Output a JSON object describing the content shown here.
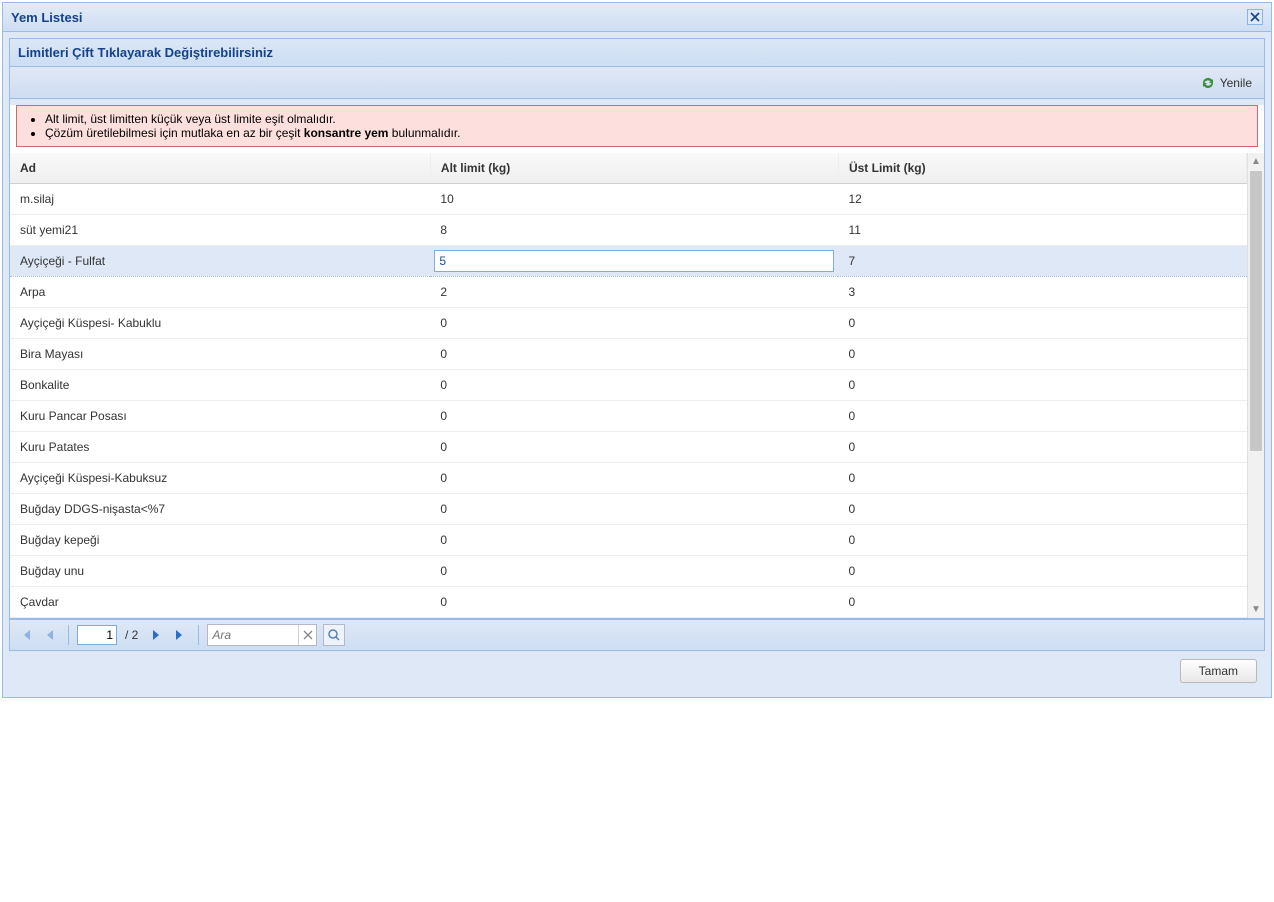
{
  "window": {
    "title": "Yem Listesi"
  },
  "panel": {
    "title": "Limitleri Çift Tıklayarak Değiştirebilirsiniz"
  },
  "toolbar": {
    "refresh_label": "Yenile"
  },
  "warnings": {
    "line1_text": "Alt limit, üst limitten küçük veya üst limite eşit olmalıdır.",
    "line2_prefix": "Çözüm üretilebilmesi için mutlaka en az bir çeşit ",
    "line2_bold": "konsantre yem",
    "line2_suffix": " bulunmalıdır."
  },
  "columns": {
    "name": "Ad",
    "lower": "Alt limit (kg)",
    "upper": "Üst Limit (kg)"
  },
  "rows": [
    {
      "name": "m.silaj",
      "lower": "10",
      "upper": "12",
      "selected": false,
      "editing": false
    },
    {
      "name": "süt yemi21",
      "lower": "8",
      "upper": "11",
      "selected": false,
      "editing": false
    },
    {
      "name": "Ayçiçeği - Fulfat",
      "lower": "5",
      "upper": "7",
      "selected": true,
      "editing": true
    },
    {
      "name": "Arpa",
      "lower": "2",
      "upper": "3",
      "selected": false,
      "editing": false
    },
    {
      "name": "Ayçiçeği Küspesi- Kabuklu",
      "lower": "0",
      "upper": "0",
      "selected": false,
      "editing": false
    },
    {
      "name": "Bira Mayası",
      "lower": "0",
      "upper": "0",
      "selected": false,
      "editing": false
    },
    {
      "name": "Bonkalite",
      "lower": "0",
      "upper": "0",
      "selected": false,
      "editing": false
    },
    {
      "name": "Kuru Pancar Posası",
      "lower": "0",
      "upper": "0",
      "selected": false,
      "editing": false
    },
    {
      "name": "Kuru Patates",
      "lower": "0",
      "upper": "0",
      "selected": false,
      "editing": false
    },
    {
      "name": "Ayçiçeği Küspesi-Kabuksuz",
      "lower": "0",
      "upper": "0",
      "selected": false,
      "editing": false
    },
    {
      "name": "Buğday DDGS-nişasta<%7",
      "lower": "0",
      "upper": "0",
      "selected": false,
      "editing": false
    },
    {
      "name": "Buğday kepeği",
      "lower": "0",
      "upper": "0",
      "selected": false,
      "editing": false
    },
    {
      "name": "Buğday unu",
      "lower": "0",
      "upper": "0",
      "selected": false,
      "editing": false
    },
    {
      "name": "Çavdar",
      "lower": "0",
      "upper": "0",
      "selected": false,
      "editing": false
    }
  ],
  "paging": {
    "current": "1",
    "total_label": "/ 2",
    "search_placeholder": "Ara"
  },
  "footer": {
    "ok_label": "Tamam"
  },
  "colors": {
    "header_text": "#15428b",
    "border": "#99bbe8",
    "warning_bg": "#fddfde",
    "warning_border": "#d46a6a",
    "selected_bg": "#dfe8f6",
    "nav_arrow": "#2a6dcb"
  },
  "column_widths": {
    "name": "34%",
    "lower": "33%",
    "upper": "33%"
  }
}
